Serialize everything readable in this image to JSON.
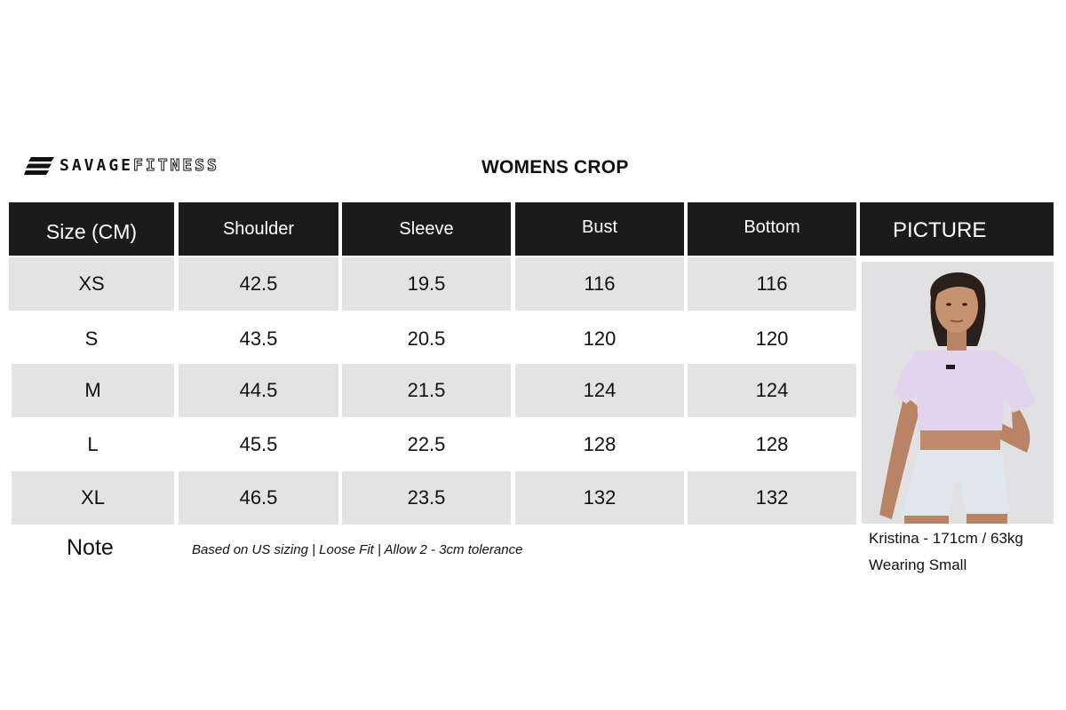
{
  "brand": {
    "word1": "SAVAGE",
    "word2": "FITNESS"
  },
  "title": "WOMENS CROP",
  "headers": [
    "Size (CM)",
    "Shoulder",
    "Sleeve",
    "Bust",
    "Bottom",
    "PICTURE"
  ],
  "rows": [
    {
      "size": "XS",
      "shoulder": "42.5",
      "sleeve": "19.5",
      "bust": "116",
      "bottom": "116"
    },
    {
      "size": "S",
      "shoulder": "43.5",
      "sleeve": "20.5",
      "bust": "120",
      "bottom": "120"
    },
    {
      "size": "M",
      "shoulder": "44.5",
      "sleeve": "21.5",
      "bust": "124",
      "bottom": "124"
    },
    {
      "size": "L",
      "shoulder": "45.5",
      "sleeve": "22.5",
      "bust": "128",
      "bottom": "128"
    },
    {
      "size": "XL",
      "shoulder": "46.5",
      "sleeve": "23.5",
      "bust": "132",
      "bottom": "132"
    }
  ],
  "note": {
    "label": "Note",
    "text": "Based on US sizing | Loose Fit | Allow 2 - 3cm tolerance"
  },
  "model": {
    "line1": "Kristina - 171cm / 63kg",
    "line2": "Wearing Small"
  },
  "colors": {
    "header_bg": "#1b1b1b",
    "row_shade": "#e3e3e3",
    "shirt": "#e2d3ef",
    "shorts": "#dfe7ec"
  }
}
